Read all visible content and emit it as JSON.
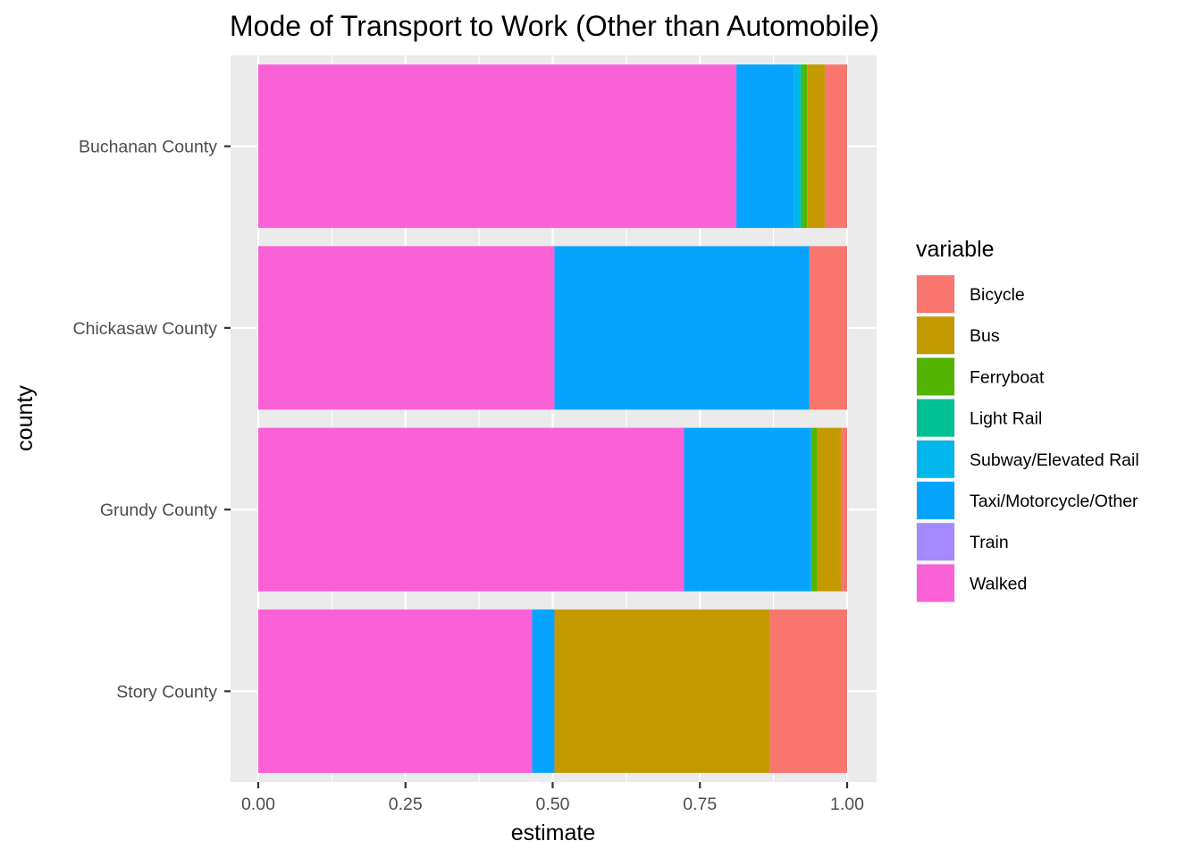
{
  "chart_data": {
    "type": "bar",
    "orientation": "horizontal",
    "stacked": true,
    "title": "Mode of Transport to Work (Other than Automobile)",
    "xlabel": "estimate",
    "ylabel": "county",
    "xlim": [
      0,
      1
    ],
    "x_ticks": [
      "0.00",
      "0.25",
      "0.50",
      "0.75",
      "1.00"
    ],
    "grid": true,
    "legend": {
      "title": "variable",
      "position": "right"
    },
    "categories": [
      "Story County",
      "Grundy County",
      "Chickasaw County",
      "Buchanan County"
    ],
    "series": [
      {
        "name": "Bicycle",
        "color": "#F8766D",
        "values": [
          0.131,
          0.01,
          0.064,
          0.038
        ]
      },
      {
        "name": "Bus",
        "color": "#C49A00",
        "values": [
          0.366,
          0.041,
          0.0,
          0.03
        ]
      },
      {
        "name": "Ferryboat",
        "color": "#53B400",
        "values": [
          0.0,
          0.01,
          0.0,
          0.008
        ]
      },
      {
        "name": "Light Rail",
        "color": "#00C094",
        "values": [
          0.0,
          0.0,
          0.0,
          0.004
        ]
      },
      {
        "name": "Subway/Elevated Rail",
        "color": "#00B6EB",
        "values": [
          0.0,
          0.0,
          0.0,
          0.01
        ]
      },
      {
        "name": "Taxi/Motorcycle/Other",
        "color": "#06A4FF",
        "values": [
          0.038,
          0.216,
          0.433,
          0.098
        ]
      },
      {
        "name": "Train",
        "color": "#A58AFF",
        "values": [
          0.0,
          0.0,
          0.0,
          0.0
        ]
      },
      {
        "name": "Walked",
        "color": "#FB61D7",
        "values": [
          0.465,
          0.723,
          0.503,
          0.812
        ]
      }
    ]
  }
}
